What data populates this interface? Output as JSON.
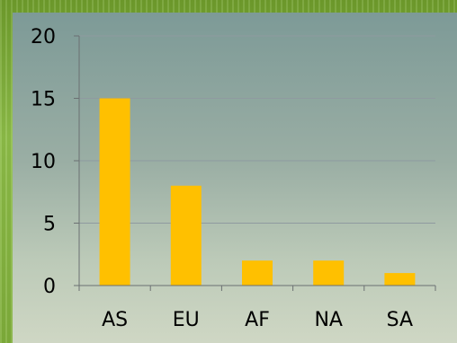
{
  "chart_data": {
    "type": "bar",
    "categories": [
      "AS",
      "EU",
      "AF",
      "NA",
      "SA"
    ],
    "values": [
      15,
      8,
      2,
      2,
      1
    ],
    "title": "",
    "xlabel": "",
    "ylabel": "",
    "ylim": [
      0,
      20
    ],
    "yticks": [
      "0",
      "5",
      "10",
      "15",
      "20"
    ],
    "grid": true,
    "legend": "none",
    "bar_color": "#ffc000",
    "grid_color": "#8f9aa0",
    "axis_color": "#6b7072"
  }
}
